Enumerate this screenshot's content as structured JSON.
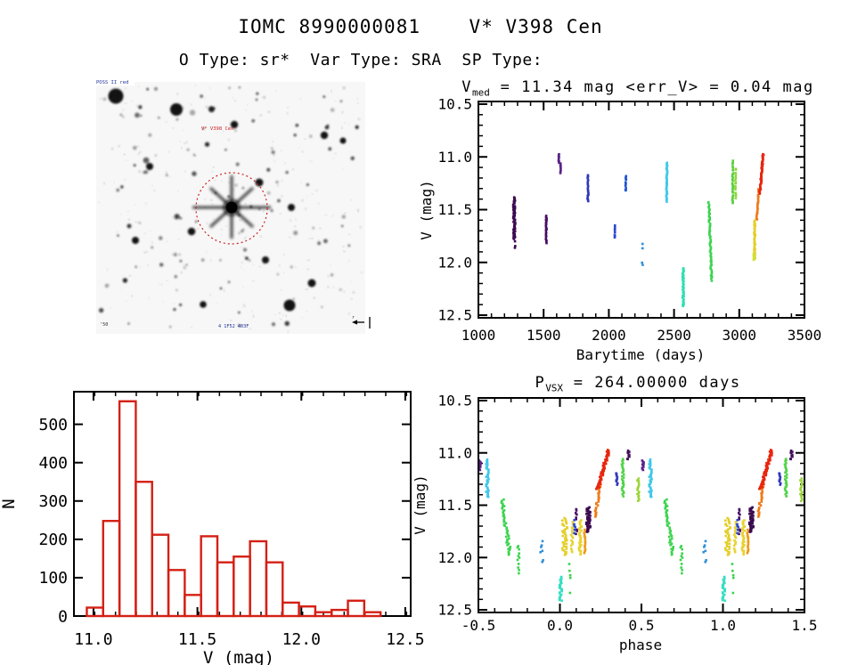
{
  "page": {
    "title": "IOMC 8990000081    V* V398 Cen",
    "subtitle": "O Type: sr*  Var Type: SRA  SP Type:"
  },
  "finder": {
    "top_left_label": "POSS II red",
    "target_label": "V* V398 Cen",
    "bottom_label": "4 1F52 403F",
    "bottom_left_label": "'50",
    "east_label": "r",
    "target_circle_color": "#cc2222",
    "label_color": "#223399"
  },
  "chart_data": [
    {
      "type": "scatter",
      "id": "lightcurve",
      "title": {
        "base": "V",
        "sub": "med",
        "rest": " = 11.34 mag <err_V> = 0.04 mag"
      },
      "xlabel": "Barytime (days)",
      "ylabel": "V (mag)",
      "xlim": [
        1000,
        3500
      ],
      "ylim": [
        10.5,
        12.5
      ],
      "y_inverted": true,
      "grid": false,
      "xticks": [
        [
          1000,
          "1000"
        ],
        [
          1500,
          "1500"
        ],
        [
          2000,
          "2000"
        ],
        [
          2500,
          "2500"
        ],
        [
          3000,
          "3000"
        ],
        [
          3500,
          "3500"
        ]
      ],
      "yticks": [
        [
          10.5,
          "10.5"
        ],
        [
          11.0,
          "11.0"
        ],
        [
          11.5,
          "11.5"
        ],
        [
          12.0,
          "12.0"
        ],
        [
          12.5,
          "12.5"
        ]
      ],
      "x_minor": 100,
      "y_minor": 0.1,
      "clusters": [
        {
          "x": 1275,
          "w": 16,
          "v": [
            11.38,
            11.78
          ],
          "n": 60,
          "color": "#3c0a50"
        },
        {
          "x": 1281,
          "w": 5,
          "v": [
            11.78,
            11.87
          ],
          "n": 6,
          "color": "#3c0a50",
          "sparse": true
        },
        {
          "x": 1520,
          "w": 7,
          "v": [
            11.55,
            11.82
          ],
          "n": 22,
          "color": "#470d63"
        },
        {
          "x": 1617,
          "w": 5,
          "v": [
            10.97,
            11.06
          ],
          "n": 9,
          "color": "#5a2388"
        },
        {
          "x": 1631,
          "w": 5,
          "v": [
            11.06,
            11.16
          ],
          "n": 9,
          "color": "#5a2388"
        },
        {
          "x": 1840,
          "w": 8,
          "v": [
            11.17,
            11.43
          ],
          "n": 20,
          "color": "#3038bb"
        },
        {
          "x": 2045,
          "w": 4,
          "v": [
            11.64,
            11.78
          ],
          "n": 8,
          "color": "#2948cf"
        },
        {
          "x": 2130,
          "w": 5,
          "v": [
            11.17,
            11.33
          ],
          "n": 11,
          "color": "#2055d2"
        },
        {
          "x": 2258,
          "w": 9,
          "v": [
            11.8,
            12.07
          ],
          "n": 13,
          "color": "#2f8fd8",
          "sparse": true
        },
        {
          "x": 2445,
          "w": 9,
          "v": [
            11.05,
            11.43
          ],
          "n": 34,
          "color": "#3fc8ea"
        },
        {
          "x": 2570,
          "w": 11,
          "v": [
            12.05,
            12.42
          ],
          "n": 38,
          "color": "#2fdfb0"
        },
        {
          "x": 2766,
          "w": 9,
          "v": [
            11.42,
            12.18
          ],
          "n": 55,
          "color": "#3bd44e",
          "slant": 29
        },
        {
          "x": 2950,
          "w": 7,
          "v": [
            11.03,
            11.45
          ],
          "n": 26,
          "color": "#5ace3f"
        },
        {
          "x": 2972,
          "w": 5,
          "v": [
            11.1,
            11.4
          ],
          "n": 16,
          "color": "#8ed73c"
        },
        {
          "x": 3118,
          "w": 9,
          "v": [
            11.6,
            11.97
          ],
          "n": 36,
          "color": "#e4cf2b"
        },
        {
          "x": 3112,
          "w": 4,
          "v": [
            11.9,
            11.99
          ],
          "n": 6,
          "color": "#cfe232"
        },
        {
          "x": 3150,
          "w": 6,
          "v": [
            11.3,
            11.6
          ],
          "n": 22,
          "color": "#ee7a18",
          "slant": -55
        },
        {
          "x": 3183,
          "w": 9,
          "v": [
            10.97,
            11.35
          ],
          "n": 48,
          "color": "#e7260e",
          "slant": -65
        }
      ]
    },
    {
      "type": "bar",
      "id": "histogram",
      "xlabel": "V (mag)",
      "ylabel": "N",
      "xlim": [
        10.906,
        12.526
      ],
      "ylim": [
        0,
        585
      ],
      "xticks": [
        [
          11.0,
          "11.0"
        ],
        [
          11.5,
          "11.5"
        ],
        [
          12.0,
          "12.0"
        ],
        [
          12.5,
          "12.5"
        ]
      ],
      "yticks": [
        [
          0,
          "0"
        ],
        [
          100,
          "100"
        ],
        [
          200,
          "200"
        ],
        [
          300,
          "300"
        ],
        [
          400,
          "400"
        ],
        [
          500,
          "500"
        ]
      ],
      "x_minor": 0.1,
      "bin_start": 10.968,
      "bin_width": 0.0785,
      "counts": [
        22,
        248,
        560,
        350,
        212,
        120,
        55,
        208,
        140,
        155,
        195,
        140,
        35,
        25,
        10,
        16,
        40,
        10
      ],
      "bar_color": "#d42015"
    },
    {
      "type": "scatter",
      "id": "phased",
      "title": {
        "base": "P",
        "sub": "VSX",
        "rest": " = 264.00000 days"
      },
      "xlabel": "phase",
      "ylabel": "V (mag)",
      "xlim": [
        -0.5,
        1.5
      ],
      "ylim": [
        10.5,
        12.5
      ],
      "y_inverted": true,
      "period_days": 264.0,
      "xticks": [
        [
          -0.5,
          "-0.5"
        ],
        [
          0.0,
          "0.0"
        ],
        [
          0.5,
          "0.5"
        ],
        [
          1.0,
          "1.0"
        ],
        [
          1.5,
          "1.5"
        ]
      ],
      "yticks": [
        [
          10.5,
          "10.5"
        ],
        [
          11.0,
          "11.0"
        ],
        [
          11.5,
          "11.5"
        ],
        [
          12.0,
          "12.0"
        ],
        [
          12.5,
          "12.5"
        ]
      ],
      "x_minor": 0.1,
      "y_minor": 0.1,
      "repeat_cycle": true,
      "clusters": [
        {
          "x": 0.51,
          "w": 0.012,
          "v": [
            11.07,
            11.17
          ],
          "n": 10,
          "color": "#5a2388"
        },
        {
          "x": 0.42,
          "w": 0.012,
          "v": [
            10.97,
            11.07
          ],
          "n": 9,
          "color": "#42105a"
        },
        {
          "x": 0.555,
          "w": 0.016,
          "v": [
            11.06,
            11.43
          ],
          "n": 34,
          "color": "#3fc8ea"
        },
        {
          "x": 0.645,
          "w": 0.02,
          "v": [
            11.44,
            11.98
          ],
          "n": 42,
          "color": "#3bd44e",
          "slant": 0.09
        },
        {
          "x": 0.745,
          "w": 0.015,
          "v": [
            11.88,
            12.22
          ],
          "n": 18,
          "color": "#3bd44e",
          "sparse": true
        },
        {
          "x": 0.89,
          "w": 0.02,
          "v": [
            11.84,
            12.05
          ],
          "n": 12,
          "color": "#2f8fd8",
          "sparse": true
        },
        {
          "x": 0.005,
          "w": 0.016,
          "v": [
            12.18,
            12.42
          ],
          "n": 24,
          "color": "#35dfc0"
        },
        {
          "x": 0.065,
          "w": 0.016,
          "v": [
            12.05,
            12.35
          ],
          "n": 13,
          "color": "#3bd44e",
          "sparse": true
        },
        {
          "x": 0.03,
          "w": 0.03,
          "v": [
            11.62,
            11.98
          ],
          "n": 38,
          "color": "#e4cf2b"
        },
        {
          "x": 0.075,
          "w": 0.012,
          "v": [
            11.66,
            11.96
          ],
          "n": 16,
          "color": "#e8d22e"
        },
        {
          "x": 0.125,
          "w": 0.018,
          "v": [
            11.64,
            11.98
          ],
          "n": 30,
          "color": "#e8d22e"
        },
        {
          "x": 0.152,
          "w": 0.008,
          "v": [
            11.73,
            11.97
          ],
          "n": 16,
          "color": "#ef9a18"
        },
        {
          "x": 0.1,
          "w": 0.01,
          "v": [
            11.53,
            11.78
          ],
          "n": 13,
          "color": "#470d63",
          "sparse": true
        },
        {
          "x": 0.175,
          "w": 0.026,
          "v": [
            11.52,
            11.76
          ],
          "n": 42,
          "color": "#3c0a50"
        },
        {
          "x": 0.245,
          "w": 0.014,
          "v": [
            11.3,
            11.62
          ],
          "n": 24,
          "color": "#ee7a18",
          "slant": -0.09
        },
        {
          "x": 0.3,
          "w": 0.02,
          "v": [
            10.97,
            11.35
          ],
          "n": 50,
          "color": "#e7260e",
          "slant": -0.18
        },
        {
          "x": 0.35,
          "w": 0.01,
          "v": [
            11.19,
            11.31
          ],
          "n": 9,
          "color": "#3038bb"
        },
        {
          "x": 0.385,
          "w": 0.016,
          "v": [
            11.05,
            11.42
          ],
          "n": 28,
          "color": "#4fd347"
        },
        {
          "x": 0.48,
          "w": 0.012,
          "v": [
            11.24,
            11.47
          ],
          "n": 18,
          "color": "#9ed53a"
        },
        {
          "x": 0.09,
          "w": 0.008,
          "v": [
            11.64,
            11.78
          ],
          "n": 6,
          "color": "#2948cf"
        }
      ]
    }
  ]
}
